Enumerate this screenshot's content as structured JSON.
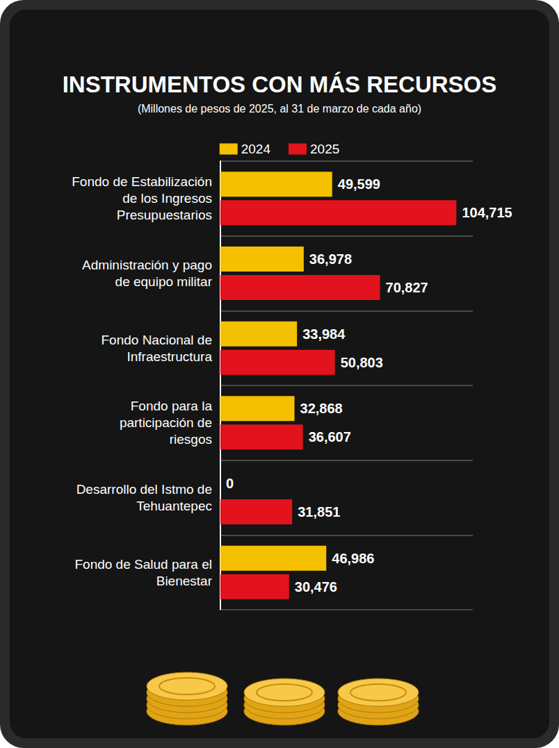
{
  "chart_data": {
    "type": "bar",
    "title": "INSTRUMENTOS CON MÁS RECURSOS",
    "subtitle": "(Millones de pesos de 2025, al 31 de marzo de cada año)",
    "orientation": "horizontal",
    "categories": [
      "Fondo de Estabilización de los Ingresos Presupuestarios",
      "Administración y pago de equipo militar",
      "Fondo Nacional de Infraestructura",
      "Fondo para la participación de riesgos",
      "Desarrollo del Istmo de Tehuantepec",
      "Fondo de Salud para el Bienestar"
    ],
    "series": [
      {
        "name": "2024",
        "color": "#f5c000",
        "values": [
          49599,
          36978,
          33984,
          32868,
          0,
          46986
        ],
        "value_labels": [
          "49,599",
          "36,978",
          "33,984",
          "32,868",
          "0",
          "46,986"
        ]
      },
      {
        "name": "2025",
        "color": "#e2131d",
        "values": [
          104715,
          70827,
          50803,
          36607,
          31851,
          30476
        ],
        "value_labels": [
          "104,715",
          "70,827",
          "50,803",
          "36,607",
          "31,851",
          "30,476"
        ]
      }
    ],
    "xlim": [
      0,
      112000
    ],
    "data_labels": true,
    "tick_labels": "y",
    "grid": true,
    "legend": "top"
  }
}
